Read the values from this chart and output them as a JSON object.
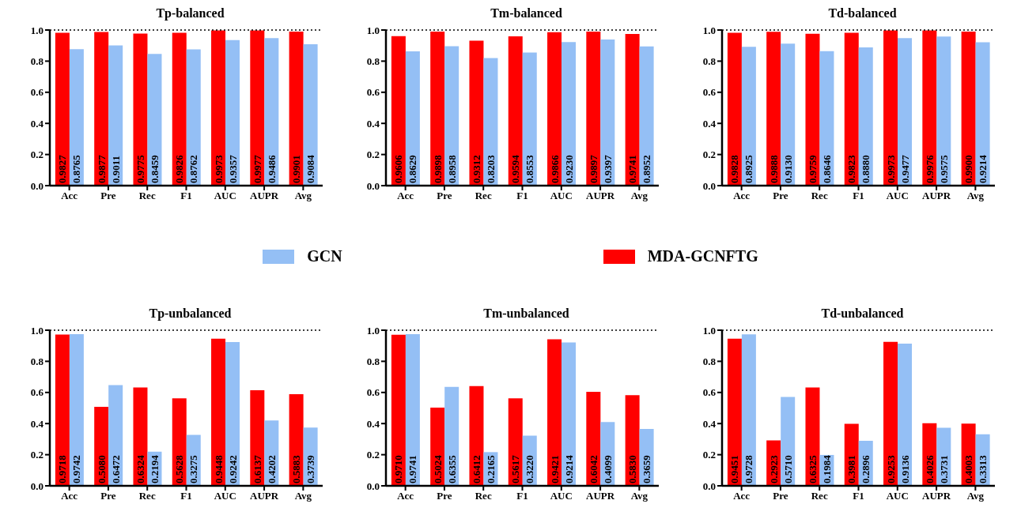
{
  "chart_data": [
    {
      "type": "bar",
      "title": "Tp-balanced",
      "categories": [
        "Acc",
        "Pre",
        "Rec",
        "F1",
        "AUC",
        "AUPR",
        "Avg"
      ],
      "series": [
        {
          "name": "MDA-GCNFTG",
          "color": "#ff0000",
          "values": [
            0.9827,
            0.9877,
            0.9775,
            0.9826,
            0.9973,
            0.9977,
            0.9901
          ],
          "value_labels": [
            "0.9827",
            "0.9877",
            "0.9775",
            "0.9826",
            "0.9973",
            "0.9977",
            "0.9901"
          ]
        },
        {
          "name": "GCN",
          "color": "#94bff5",
          "values": [
            0.8765,
            0.9011,
            0.8459,
            0.8762,
            0.9357,
            0.9486,
            0.9084
          ],
          "value_labels": [
            "0.8765",
            "0.9011",
            "0.8459",
            "0.8762",
            "0.9357",
            "0.9486",
            "0.9084"
          ]
        }
      ],
      "ylim": [
        0,
        1
      ],
      "yticks": [
        {
          "value": 0,
          "label": "0.0"
        },
        {
          "value": 0.2,
          "label": "0.2"
        },
        {
          "value": 0.4,
          "label": "0.4"
        },
        {
          "value": 0.6,
          "label": "0.6"
        },
        {
          "value": 0.8,
          "label": "0.8"
        },
        {
          "value": 1,
          "label": "1.0"
        }
      ],
      "ref_lines": [
        {
          "axis": "y",
          "value": 1,
          "line_style": "dotted",
          "color": "#000000"
        }
      ],
      "grid": false,
      "legend": "bottom"
    },
    {
      "type": "bar",
      "title": "Tm-balanced",
      "categories": [
        "Acc",
        "Pre",
        "Rec",
        "F1",
        "AUC",
        "AUPR",
        "Avg"
      ],
      "series": [
        {
          "color": "#ff0000",
          "values": [
            0.9606,
            0.9898,
            0.9312,
            0.9594,
            0.9866,
            0.9897,
            0.9741
          ],
          "value_labels": [
            "0.9606",
            "0.9898",
            "0.9312",
            "0.9594",
            "0.9866",
            "0.9897",
            "0.9741"
          ]
        },
        {
          "color": "#94bff5",
          "values": [
            0.8629,
            0.8958,
            0.8203,
            0.8553,
            0.923,
            0.9397,
            0.8952
          ],
          "value_labels": [
            "0.8629",
            "0.8958",
            "0.8203",
            "0.8553",
            "0.9230",
            "0.9397",
            "0.8952"
          ]
        }
      ],
      "ylim": [
        0,
        1
      ],
      "yticks": [
        {
          "value": 0,
          "label": "0.0"
        },
        {
          "value": 0.2,
          "label": "0.2"
        },
        {
          "value": 0.4,
          "label": "0.4"
        },
        {
          "value": 0.6,
          "label": "0.6"
        },
        {
          "value": 0.8,
          "label": "0.8"
        },
        {
          "value": 1,
          "label": "1.0"
        }
      ],
      "ref_lines": [
        {
          "axis": "y",
          "value": 1,
          "line_style": "dotted",
          "color": "#000000"
        }
      ],
      "grid": false
    },
    {
      "type": "bar",
      "title": "Td-balanced",
      "categories": [
        "Acc",
        "Pre",
        "Rec",
        "F1",
        "AUC",
        "AUPR",
        "Avg"
      ],
      "series": [
        {
          "color": "#ff0000",
          "values": [
            0.9828,
            0.9888,
            0.9759,
            0.9823,
            0.9973,
            0.9976,
            0.99
          ],
          "value_labels": [
            "0.9828",
            "0.9888",
            "0.9759",
            "0.9823",
            "0.9973",
            "0.9976",
            "0.9900"
          ]
        },
        {
          "color": "#94bff5",
          "values": [
            0.8925,
            0.913,
            0.8646,
            0.888,
            0.9477,
            0.9575,
            0.9214
          ],
          "value_labels": [
            "0.8925",
            "0.9130",
            "0.8646",
            "0.8880",
            "0.9477",
            "0.9575",
            "0.9214"
          ]
        }
      ],
      "ylim": [
        0,
        1
      ],
      "yticks": [
        {
          "value": 0,
          "label": "0.0"
        },
        {
          "value": 0.2,
          "label": "0.2"
        },
        {
          "value": 0.4,
          "label": "0.4"
        },
        {
          "value": 0.6,
          "label": "0.6"
        },
        {
          "value": 0.8,
          "label": "0.8"
        },
        {
          "value": 1,
          "label": "1.0"
        }
      ],
      "ref_lines": [
        {
          "axis": "y",
          "value": 1,
          "line_style": "dotted",
          "color": "#000000"
        }
      ],
      "grid": false
    },
    {
      "type": "bar",
      "title": "Tp-unbalanced",
      "categories": [
        "Acc",
        "Pre",
        "Rec",
        "F1",
        "AUC",
        "AUPR",
        "Avg"
      ],
      "series": [
        {
          "color": "#ff0000",
          "values": [
            0.9718,
            0.508,
            0.6324,
            0.5628,
            0.9448,
            0.6137,
            0.5883
          ],
          "value_labels": [
            "0.9718",
            "0.5080",
            "0.6324",
            "0.5628",
            "0.9448",
            "0.6137",
            "0.5883"
          ]
        },
        {
          "color": "#94bff5",
          "values": [
            0.9742,
            0.6472,
            0.2194,
            0.3275,
            0.9242,
            0.4202,
            0.3739
          ],
          "value_labels": [
            "0.9742",
            "0.6472",
            "0.2194",
            "0.3275",
            "0.9242",
            "0.4202",
            "0.3739"
          ]
        }
      ],
      "ylim": [
        0,
        1
      ],
      "yticks": [
        {
          "value": 0,
          "label": "0.0"
        },
        {
          "value": 0.2,
          "label": "0.2"
        },
        {
          "value": 0.4,
          "label": "0.4"
        },
        {
          "value": 0.6,
          "label": "0.6"
        },
        {
          "value": 0.8,
          "label": "0.8"
        },
        {
          "value": 1,
          "label": "1.0"
        }
      ],
      "ref_lines": [
        {
          "axis": "y",
          "value": 1,
          "line_style": "dotted",
          "color": "#000000"
        }
      ],
      "grid": false
    },
    {
      "type": "bar",
      "title": "Tm-unbalanced",
      "categories": [
        "Acc",
        "Pre",
        "Rec",
        "F1",
        "AUC",
        "AUPR",
        "Avg"
      ],
      "series": [
        {
          "color": "#ff0000",
          "values": [
            0.971,
            0.5024,
            0.6412,
            0.5617,
            0.9421,
            0.6042,
            0.583
          ],
          "value_labels": [
            "0.9710",
            "0.5024",
            "0.6412",
            "0.5617",
            "0.9421",
            "0.6042",
            "0.5830"
          ]
        },
        {
          "color": "#94bff5",
          "values": [
            0.9741,
            0.6355,
            0.2165,
            0.322,
            0.9214,
            0.4099,
            0.3659
          ],
          "value_labels": [
            "0.9741",
            "0.6355",
            "0.2165",
            "0.3220",
            "0.9214",
            "0.4099",
            "0.3659"
          ]
        }
      ],
      "ylim": [
        0,
        1
      ],
      "yticks": [
        {
          "value": 0,
          "label": "0.0"
        },
        {
          "value": 0.2,
          "label": "0.2"
        },
        {
          "value": 0.4,
          "label": "0.4"
        },
        {
          "value": 0.6,
          "label": "0.6"
        },
        {
          "value": 0.8,
          "label": "0.8"
        },
        {
          "value": 1,
          "label": "1.0"
        }
      ],
      "ref_lines": [
        {
          "axis": "y",
          "value": 1,
          "line_style": "dotted",
          "color": "#000000"
        }
      ],
      "grid": false
    },
    {
      "type": "bar",
      "title": "Td-unbalanced",
      "categories": [
        "Acc",
        "Pre",
        "Rec",
        "F1",
        "AUC",
        "AUPR",
        "Avg"
      ],
      "series": [
        {
          "color": "#ff0000",
          "values": [
            0.9451,
            0.2923,
            0.6325,
            0.3981,
            0.9253,
            0.4026,
            0.4003
          ],
          "value_labels": [
            "0.9451",
            "0.2923",
            "0.6325",
            "0.3981",
            "0.9253",
            "0.4026",
            "0.4003"
          ]
        },
        {
          "color": "#94bff5",
          "values": [
            0.9728,
            0.571,
            0.1984,
            0.2896,
            0.9136,
            0.3731,
            0.3313
          ],
          "value_labels": [
            "0.9728",
            "0.5710",
            "0.1984",
            "0.2896",
            "0.9136",
            "0.3731",
            "0.3313"
          ]
        }
      ],
      "ylim": [
        0,
        1
      ],
      "yticks": [
        {
          "value": 0,
          "label": "0.0"
        },
        {
          "value": 0.2,
          "label": "0.2"
        },
        {
          "value": 0.4,
          "label": "0.4"
        },
        {
          "value": 0.6,
          "label": "0.6"
        },
        {
          "value": 0.8,
          "label": "0.8"
        },
        {
          "value": 1,
          "label": "1.0"
        }
      ],
      "ref_lines": [
        {
          "axis": "y",
          "value": 1,
          "line_style": "dotted",
          "color": "#000000"
        }
      ],
      "grid": false
    }
  ]
}
